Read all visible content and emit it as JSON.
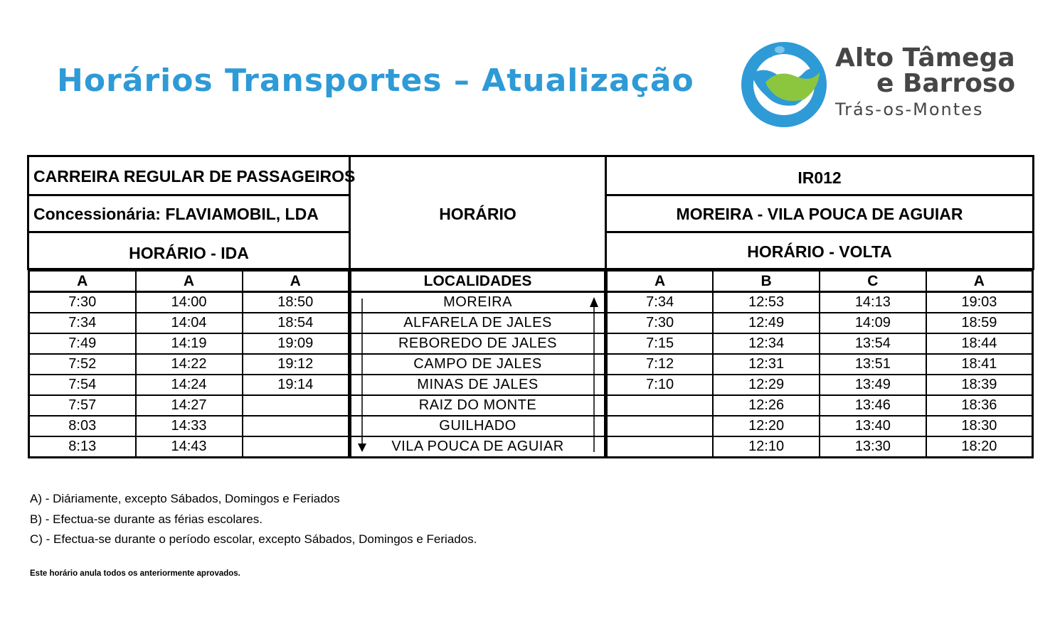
{
  "title": "Horários Transportes – Atualização",
  "logo": {
    "line1": "Alto Tâmega",
    "line2": "e Barroso",
    "line3": "Trás-os-Montes",
    "blue": "#2f9bd6",
    "green": "#8cc63f"
  },
  "left_header": {
    "line1": "CARREIRA REGULAR DE PASSAGEIROS",
    "line2": "Concessionária: FLAVIAMOBIL, LDA",
    "line3": "HORÁRIO - IDA"
  },
  "center_header": {
    "label": "HORÁRIO",
    "col": "LOCALIDADES"
  },
  "right_header": {
    "line1": "IR012",
    "line2": "MOREIRA - VILA POUCA DE AGUIAR",
    "line3": "HORÁRIO - VOLTA"
  },
  "ida_cols": [
    "A",
    "A",
    "A"
  ],
  "volta_cols": [
    "A",
    "B",
    "C",
    "A"
  ],
  "rows": [
    {
      "ida": [
        "7:30",
        "14:00",
        "18:50"
      ],
      "loc": "MOREIRA",
      "volta": [
        "7:34",
        "12:53",
        "14:13",
        "19:03"
      ]
    },
    {
      "ida": [
        "7:34",
        "14:04",
        "18:54"
      ],
      "loc": "ALFARELA DE JALES",
      "volta": [
        "7:30",
        "12:49",
        "14:09",
        "18:59"
      ]
    },
    {
      "ida": [
        "7:49",
        "14:19",
        "19:09"
      ],
      "loc": "REBOREDO DE JALES",
      "volta": [
        "7:15",
        "12:34",
        "13:54",
        "18:44"
      ]
    },
    {
      "ida": [
        "7:52",
        "14:22",
        "19:12"
      ],
      "loc": "CAMPO DE JALES",
      "volta": [
        "7:12",
        "12:31",
        "13:51",
        "18:41"
      ]
    },
    {
      "ida": [
        "7:54",
        "14:24",
        "19:14"
      ],
      "loc": "MINAS DE JALES",
      "volta": [
        "7:10",
        "12:29",
        "13:49",
        "18:39"
      ]
    },
    {
      "ida": [
        "7:57",
        "14:27",
        ""
      ],
      "loc": "RAIZ DO MONTE",
      "volta": [
        "",
        "12:26",
        "13:46",
        "18:36"
      ]
    },
    {
      "ida": [
        "8:03",
        "14:33",
        ""
      ],
      "loc": "GUILHADO",
      "volta": [
        "",
        "12:20",
        "13:40",
        "18:30"
      ]
    },
    {
      "ida": [
        "8:13",
        "14:43",
        ""
      ],
      "loc": "VILA POUCA DE AGUIAR",
      "volta": [
        "",
        "12:10",
        "13:30",
        "18:20"
      ]
    }
  ],
  "notes": [
    "A) - Diáriamente, excepto Sábados, Domingos e Feriados",
    "B) - Efectua-se durante as férias escolares.",
    "C) - Efectua-se durante o período escolar, excepto Sábados, Domingos e Feriados."
  ],
  "fine_print": "Este horário anula todos os anteriormente aprovados."
}
